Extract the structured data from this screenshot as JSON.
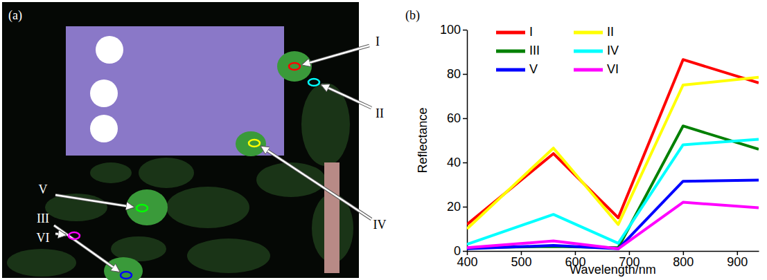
{
  "image_panel": {
    "label": "(a)",
    "markers": [
      "I",
      "II",
      "III",
      "IV",
      "V",
      "VI"
    ]
  },
  "chart_data": {
    "type": "line",
    "panel_label": "(b)",
    "x_label": "Wavelength/nm",
    "y_label": "Reflectance",
    "x": [
      400,
      560,
      680,
      800,
      940
    ],
    "xlim": [
      400,
      940
    ],
    "xticks": [
      400,
      500,
      600,
      700,
      800,
      900
    ],
    "ylim": [
      0,
      100
    ],
    "yticks": [
      0,
      20,
      40,
      60,
      80,
      100
    ],
    "grid": false,
    "legend": "upper left",
    "series": [
      {
        "name": "I",
        "color": "#ff0000",
        "values": [
          12,
          44,
          15,
          86.5,
          76
        ]
      },
      {
        "name": "II",
        "color": "#ffff00",
        "values": [
          10,
          46.5,
          12,
          75,
          78.5
        ]
      },
      {
        "name": "III",
        "color": "#008000",
        "values": [
          1.5,
          2,
          1.5,
          56.5,
          46
        ]
      },
      {
        "name": "IV",
        "color": "#00ffff",
        "values": [
          3,
          16.5,
          3.5,
          48,
          50.5
        ]
      },
      {
        "name": "V",
        "color": "#0000ff",
        "values": [
          1,
          2.5,
          1,
          31.5,
          32
        ]
      },
      {
        "name": "VI",
        "color": "#ff00ff",
        "values": [
          1.5,
          4.5,
          1,
          22,
          19.5
        ]
      }
    ]
  }
}
